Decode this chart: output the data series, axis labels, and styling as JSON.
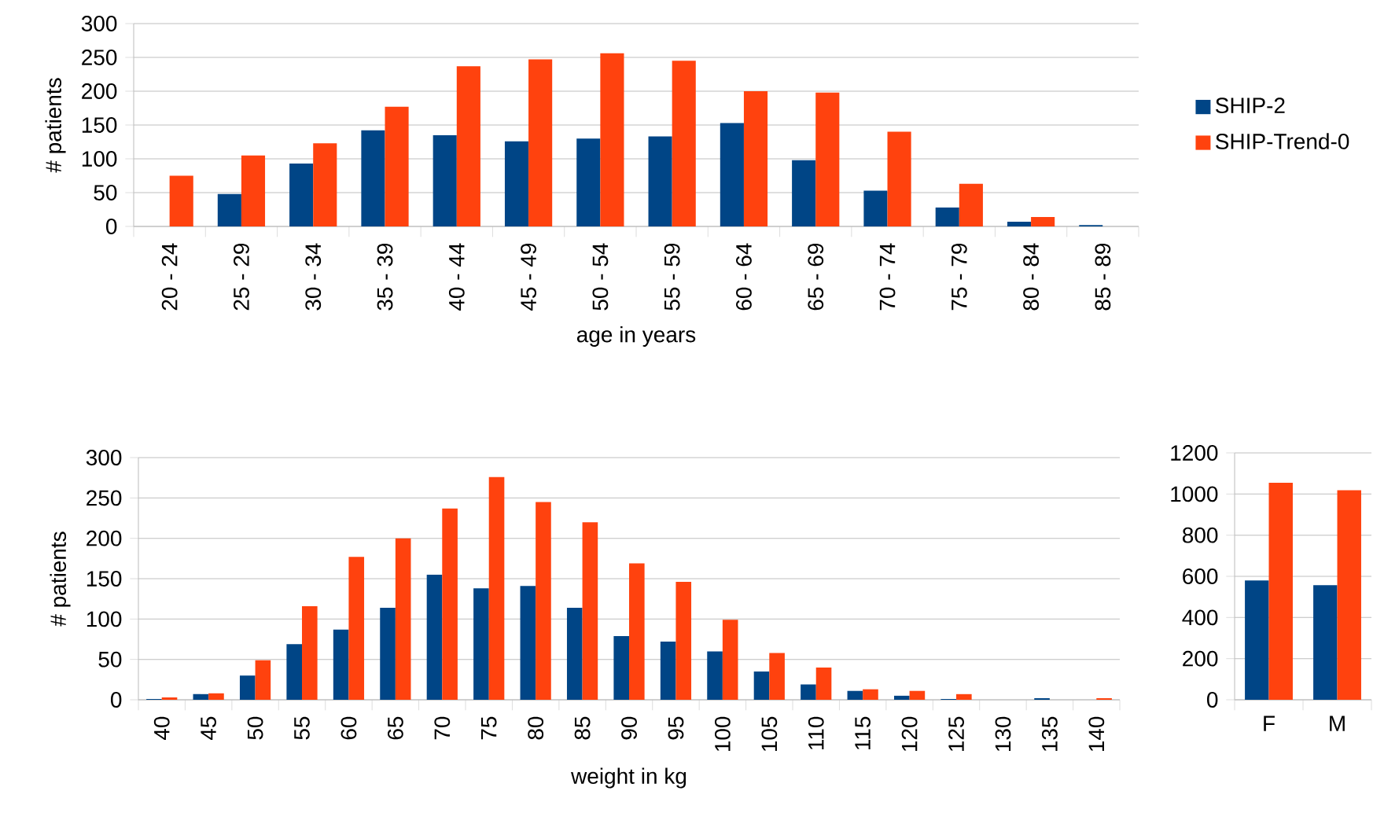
{
  "chart_data": [
    {
      "type": "bar",
      "xlabel": "age in years",
      "ylabel": "# patients",
      "categories": [
        "20 - 24",
        "25 - 29",
        "30 - 34",
        "35 - 39",
        "40 - 44",
        "45 - 49",
        "50 - 54",
        "55 - 59",
        "60 - 64",
        "65 - 69",
        "70 - 74",
        "75 - 79",
        "80 - 84",
        "85 - 89"
      ],
      "series": [
        {
          "name": "SHIP-2",
          "color": "#004586",
          "values": [
            0,
            48,
            93,
            142,
            135,
            126,
            130,
            133,
            153,
            98,
            53,
            28,
            7,
            2
          ]
        },
        {
          "name": "SHIP-Trend-0",
          "color": "#ff420e",
          "values": [
            75,
            105,
            123,
            177,
            237,
            247,
            256,
            245,
            200,
            198,
            140,
            63,
            14,
            0
          ]
        }
      ],
      "ylim": [
        0,
        300
      ],
      "yticks": [
        0,
        50,
        100,
        150,
        200,
        250,
        300
      ],
      "grid": "y",
      "legend": "right"
    },
    {
      "type": "bar",
      "xlabel": "weight in kg",
      "ylabel": "# patients",
      "categories": [
        "40",
        "45",
        "50",
        "55",
        "60",
        "65",
        "70",
        "75",
        "80",
        "85",
        "90",
        "95",
        "100",
        "105",
        "110",
        "115",
        "120",
        "125",
        "130",
        "135",
        "140"
      ],
      "series": [
        {
          "color": "#004586",
          "values": [
            1,
            7,
            30,
            69,
            87,
            114,
            155,
            138,
            141,
            114,
            79,
            72,
            60,
            35,
            19,
            11,
            5,
            1,
            0,
            2,
            0
          ]
        },
        {
          "color": "#ff420e",
          "values": [
            3,
            8,
            49,
            116,
            177,
            200,
            237,
            276,
            245,
            220,
            169,
            146,
            99,
            58,
            40,
            13,
            11,
            7,
            0,
            0,
            2
          ]
        }
      ],
      "ylim": [
        0,
        300
      ],
      "yticks": [
        0,
        50,
        100,
        150,
        200,
        250,
        300
      ],
      "grid": "y"
    },
    {
      "type": "bar",
      "categories": [
        "F",
        "M"
      ],
      "series": [
        {
          "color": "#004586",
          "values": [
            580,
            557
          ]
        },
        {
          "color": "#ff420e",
          "values": [
            1055,
            1018
          ]
        }
      ],
      "ylim": [
        0,
        1200
      ],
      "yticks": [
        0,
        200,
        400,
        600,
        800,
        1000,
        1200
      ],
      "grid": "y"
    }
  ]
}
